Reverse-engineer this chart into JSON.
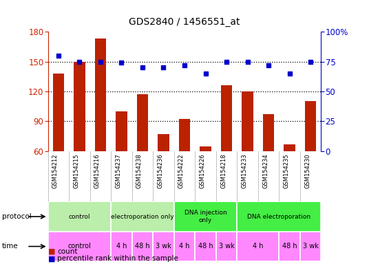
{
  "title": "GDS2840 / 1456551_at",
  "samples": [
    "GSM154212",
    "GSM154215",
    "GSM154216",
    "GSM154237",
    "GSM154238",
    "GSM154236",
    "GSM154222",
    "GSM154226",
    "GSM154218",
    "GSM154233",
    "GSM154234",
    "GSM154235",
    "GSM154230"
  ],
  "counts": [
    138,
    150,
    173,
    100,
    117,
    77,
    92,
    65,
    126,
    120,
    97,
    67,
    110
  ],
  "percentiles": [
    80,
    75,
    75,
    74,
    70,
    70,
    72,
    65,
    75,
    75,
    72,
    65,
    75
  ],
  "ylim_left": [
    60,
    180
  ],
  "ylim_right": [
    0,
    100
  ],
  "yticks_left": [
    60,
    90,
    120,
    150,
    180
  ],
  "yticks_right": [
    0,
    25,
    50,
    75,
    100
  ],
  "bar_color": "#bb2200",
  "dot_color": "#0000cc",
  "bg_color": "#ffffff",
  "axis_color_left": "#cc2200",
  "axis_color_right": "#0000cc",
  "dotted_yticks": [
    90,
    120,
    150
  ],
  "protocol_groups": [
    {
      "label": "control",
      "start": 0,
      "end": 2,
      "color": "#bbeeaa"
    },
    {
      "label": "electroporation only",
      "start": 3,
      "end": 5,
      "color": "#bbeeaa"
    },
    {
      "label": "DNA injection\nonly",
      "start": 6,
      "end": 8,
      "color": "#44ee44"
    },
    {
      "label": "DNA electroporation",
      "start": 9,
      "end": 12,
      "color": "#44ee44"
    }
  ],
  "time_groups": [
    {
      "label": "control",
      "start": 0,
      "end": 2,
      "color": "#ff88ff"
    },
    {
      "label": "4 h",
      "start": 3,
      "end": 3,
      "color": "#ff88ff"
    },
    {
      "label": "48 h",
      "start": 4,
      "end": 4,
      "color": "#ff88ff"
    },
    {
      "label": "3 wk",
      "start": 5,
      "end": 5,
      "color": "#ff88ff"
    },
    {
      "label": "4 h",
      "start": 6,
      "end": 6,
      "color": "#ff88ff"
    },
    {
      "label": "48 h",
      "start": 7,
      "end": 7,
      "color": "#ff88ff"
    },
    {
      "label": "3 wk",
      "start": 8,
      "end": 8,
      "color": "#ff88ff"
    },
    {
      "label": "4 h",
      "start": 9,
      "end": 10,
      "color": "#ff88ff"
    },
    {
      "label": "48 h",
      "start": 11,
      "end": 11,
      "color": "#ff88ff"
    },
    {
      "label": "3 wk",
      "start": 12,
      "end": 12,
      "color": "#ff88ff"
    }
  ],
  "legend_count": "count",
  "legend_pct": "percentile rank within the sample"
}
